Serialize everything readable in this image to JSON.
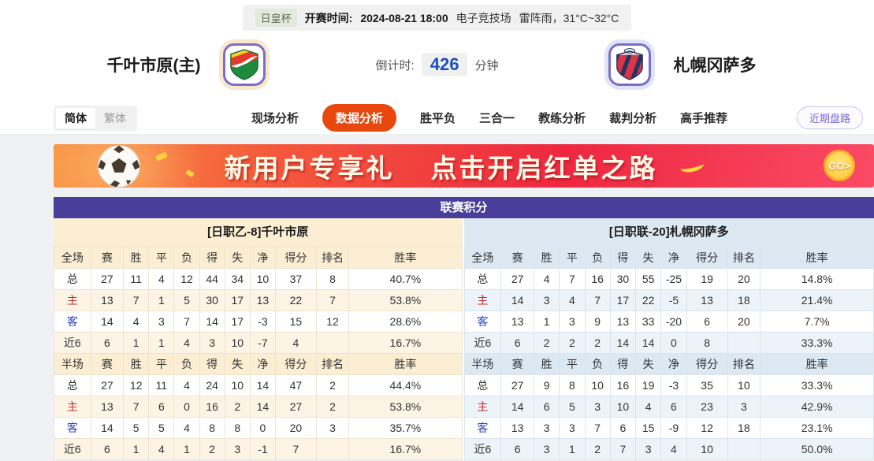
{
  "meta_bar": {
    "league_badge": "日皇杯",
    "kickoff_label": "开赛时间:",
    "kickoff_time": "2024-08-21 18:00",
    "venue": "电子竞技场",
    "weather": "雷阵雨，31°C~32°C"
  },
  "teams": {
    "home": {
      "name": "千叶市原(主)"
    },
    "away": {
      "name": "札幌冈萨多"
    }
  },
  "countdown": {
    "label": "倒计时:",
    "value": "426",
    "unit": "分钟"
  },
  "nav": {
    "lang": [
      {
        "name": "lang-simplified",
        "label": "简体",
        "active": true
      },
      {
        "name": "lang-traditional",
        "label": "繁体",
        "active": false
      }
    ],
    "tabs": [
      {
        "name": "tab-live-analysis",
        "label": "现场分析",
        "active": false
      },
      {
        "name": "tab-data-analysis",
        "label": "数据分析",
        "active": true
      },
      {
        "name": "tab-win-draw-lose",
        "label": "胜平负",
        "active": false
      },
      {
        "name": "tab-three-in-one",
        "label": "三合一",
        "active": false
      },
      {
        "name": "tab-coach-analysis",
        "label": "教练分析",
        "active": false
      },
      {
        "name": "tab-referee-analysis",
        "label": "裁判分析",
        "active": false
      },
      {
        "name": "tab-expert-picks",
        "label": "高手推荐",
        "active": false
      }
    ],
    "recent_button": "近期盘路"
  },
  "banner": {
    "text1": "新用户专享礼",
    "text2": "点击开启红单之路",
    "go_label": "GO>"
  },
  "colors": {
    "accent_orange": "#e8480e",
    "title_purple": "#493e9a",
    "home_tint": "#fbeed3",
    "away_tint": "#dce8f2",
    "home_row_label": "#c62f2f",
    "away_row_label": "#2b46c5",
    "countdown_blue": "#1c50bf"
  },
  "table": {
    "title": "联赛积分",
    "columns": [
      "赛",
      "胜",
      "平",
      "负",
      "得",
      "失",
      "净",
      "得分",
      "排名",
      "胜率"
    ],
    "label_colors": {
      "主": "#c62f2f",
      "客": "#2b46c5"
    },
    "sides": {
      "home": {
        "subtitle": "[日职乙-8]千叶市原",
        "sections": [
          {
            "label": "全场",
            "rows": [
              {
                "label": "总",
                "values": [
                  "27",
                  "11",
                  "4",
                  "12",
                  "44",
                  "34",
                  "10",
                  "37",
                  "8",
                  "40.7%"
                ]
              },
              {
                "label": "主",
                "values": [
                  "13",
                  "7",
                  "1",
                  "5",
                  "30",
                  "17",
                  "13",
                  "22",
                  "7",
                  "53.8%"
                ]
              },
              {
                "label": "客",
                "values": [
                  "14",
                  "4",
                  "3",
                  "7",
                  "14",
                  "17",
                  "-3",
                  "15",
                  "12",
                  "28.6%"
                ]
              },
              {
                "label": "近6",
                "values": [
                  "6",
                  "1",
                  "1",
                  "4",
                  "3",
                  "10",
                  "-7",
                  "4",
                  "",
                  "16.7%"
                ]
              }
            ]
          },
          {
            "label": "半场",
            "rows": [
              {
                "label": "总",
                "values": [
                  "27",
                  "12",
                  "11",
                  "4",
                  "24",
                  "10",
                  "14",
                  "47",
                  "2",
                  "44.4%"
                ]
              },
              {
                "label": "主",
                "values": [
                  "13",
                  "7",
                  "6",
                  "0",
                  "16",
                  "2",
                  "14",
                  "27",
                  "2",
                  "53.8%"
                ]
              },
              {
                "label": "客",
                "values": [
                  "14",
                  "5",
                  "5",
                  "4",
                  "8",
                  "8",
                  "0",
                  "20",
                  "3",
                  "35.7%"
                ]
              },
              {
                "label": "近6",
                "values": [
                  "6",
                  "1",
                  "4",
                  "1",
                  "2",
                  "3",
                  "-1",
                  "7",
                  "",
                  "16.7%"
                ]
              }
            ]
          }
        ]
      },
      "away": {
        "subtitle": "[日职联-20]札幌冈萨多",
        "sections": [
          {
            "label": "全场",
            "rows": [
              {
                "label": "总",
                "values": [
                  "27",
                  "4",
                  "7",
                  "16",
                  "30",
                  "55",
                  "-25",
                  "19",
                  "20",
                  "14.8%"
                ]
              },
              {
                "label": "主",
                "values": [
                  "14",
                  "3",
                  "4",
                  "7",
                  "17",
                  "22",
                  "-5",
                  "13",
                  "18",
                  "21.4%"
                ]
              },
              {
                "label": "客",
                "values": [
                  "13",
                  "1",
                  "3",
                  "9",
                  "13",
                  "33",
                  "-20",
                  "6",
                  "20",
                  "7.7%"
                ]
              },
              {
                "label": "近6",
                "values": [
                  "6",
                  "2",
                  "2",
                  "2",
                  "14",
                  "14",
                  "0",
                  "8",
                  "",
                  "33.3%"
                ]
              }
            ]
          },
          {
            "label": "半场",
            "rows": [
              {
                "label": "总",
                "values": [
                  "27",
                  "9",
                  "8",
                  "10",
                  "16",
                  "19",
                  "-3",
                  "35",
                  "10",
                  "33.3%"
                ]
              },
              {
                "label": "主",
                "values": [
                  "14",
                  "6",
                  "5",
                  "3",
                  "10",
                  "4",
                  "6",
                  "23",
                  "3",
                  "42.9%"
                ]
              },
              {
                "label": "客",
                "values": [
                  "13",
                  "3",
                  "3",
                  "7",
                  "6",
                  "15",
                  "-9",
                  "12",
                  "18",
                  "23.1%"
                ]
              },
              {
                "label": "近6",
                "values": [
                  "6",
                  "3",
                  "1",
                  "2",
                  "7",
                  "3",
                  "4",
                  "10",
                  "",
                  "50.0%"
                ]
              }
            ]
          }
        ]
      }
    }
  }
}
